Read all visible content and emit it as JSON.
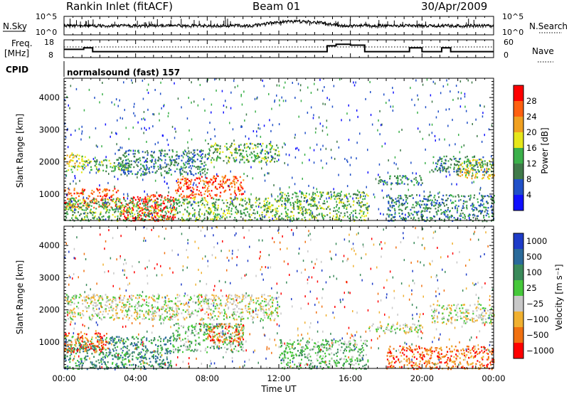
{
  "header": {
    "station": "Rankin Inlet (fitACF)",
    "beam": "Beam 01",
    "date": "30/Apr/2009"
  },
  "nsky_panel": {
    "left_label": "N.Sky",
    "right_label": "N.Search",
    "left_ticks": [
      "10^5",
      "10^0"
    ],
    "right_ticks": [
      "10^5",
      "10^0"
    ]
  },
  "freq_panel": {
    "left_label_top": "Freq.",
    "left_label_bottom": "[MHz]",
    "right_label": "Nave",
    "left_ticks": [
      "18",
      "8"
    ],
    "right_ticks": [
      "60",
      "0"
    ],
    "freq_steps": [
      {
        "t": 0.0,
        "nave": 28
      },
      {
        "t": 1.1,
        "nave": 33
      },
      {
        "t": 1.6,
        "nave": 20
      },
      {
        "t": 14.7,
        "nave": 40
      },
      {
        "t": 15.2,
        "nave": 45
      },
      {
        "t": 16.0,
        "nave": 42
      },
      {
        "t": 16.8,
        "nave": 20
      },
      {
        "t": 19.3,
        "nave": 33
      },
      {
        "t": 20.0,
        "nave": 20
      },
      {
        "t": 21.1,
        "nave": 33
      },
      {
        "t": 21.6,
        "nave": 20
      },
      {
        "t": 24.0,
        "nave": 20
      }
    ]
  },
  "cpid": {
    "label": "CPID",
    "value": "normalsound (fast) 157"
  },
  "power_panel": {
    "ylabel": "Slant Range [km]",
    "yticks": [
      "1000",
      "2000",
      "3000",
      "4000"
    ],
    "colorbar_label": "Power [dB]",
    "colorbar_ticks": [
      "4",
      "8",
      "12",
      "16",
      "20",
      "24",
      "28"
    ],
    "colors": [
      "#1010ff",
      "#2050c8",
      "#407a4a",
      "#3bb04a",
      "#e6e61a",
      "#f0a020",
      "#ff6010",
      "#ff0000"
    ]
  },
  "velocity_panel": {
    "ylabel": "Slant Range [km]",
    "yticks": [
      "1000",
      "2000",
      "3000",
      "4000"
    ],
    "colorbar_label": "Velocity [m s⁻¹]",
    "colorbar_ticks": [
      "1000",
      "500",
      "100",
      "25",
      "−25",
      "−100",
      "−500",
      "−1000"
    ],
    "colors": [
      "#1e3cc8",
      "#2a6a9a",
      "#3a8a5a",
      "#46c83a",
      "#c8c8c8",
      "#f0b030",
      "#f07010",
      "#ff0000"
    ]
  },
  "time_axis": {
    "xlabel": "Time UT",
    "ticks": [
      "00:00",
      "04:00",
      "08:00",
      "12:00",
      "16:00",
      "20:00",
      "00:00"
    ]
  },
  "chart_data": {
    "type": "heatmap",
    "title": "Rankin Inlet (fitACF)",
    "xlabel": "Time UT",
    "ylabel": "Slant Range [km]",
    "xlim_hours": [
      0,
      24
    ],
    "ylim": [
      180,
      4600
    ],
    "power_regions": [
      {
        "t0": 0.0,
        "t1": 1.2,
        "r0": 1700,
        "r1": 2300,
        "level": 4
      },
      {
        "t0": 1.2,
        "t1": 3.5,
        "r0": 1700,
        "r1": 2100,
        "level": 3
      },
      {
        "t0": 3.0,
        "t1": 8.0,
        "r0": 1600,
        "r1": 2400,
        "level": 2
      },
      {
        "t0": 8.0,
        "t1": 12.0,
        "r0": 2000,
        "r1": 2600,
        "level": 3
      },
      {
        "t0": 0.0,
        "t1": 3.0,
        "r0": 600,
        "r1": 1200,
        "level": 6
      },
      {
        "t0": 3.0,
        "t1": 6.2,
        "r0": 180,
        "r1": 1000,
        "level": 7
      },
      {
        "t0": 6.2,
        "t1": 10.0,
        "r0": 900,
        "r1": 1600,
        "level": 6
      },
      {
        "t0": 0.0,
        "t1": 12.0,
        "r0": 180,
        "r1": 900,
        "level": 3
      },
      {
        "t0": 12.0,
        "t1": 17.0,
        "r0": 180,
        "r1": 1100,
        "level": 3
      },
      {
        "t0": 17.5,
        "t1": 20.0,
        "r0": 1300,
        "r1": 1600,
        "level": 2
      },
      {
        "t0": 20.5,
        "t1": 24.0,
        "r0": 1700,
        "r1": 2200,
        "level": 2
      },
      {
        "t0": 22.0,
        "t1": 24.0,
        "r0": 1500,
        "r1": 2100,
        "level": 4
      },
      {
        "t0": 18.0,
        "t1": 24.0,
        "r0": 180,
        "r1": 1000,
        "level": 2
      }
    ],
    "velocity_regions": [
      {
        "t0": 0.0,
        "t1": 6.0,
        "r0": 180,
        "r1": 1200,
        "level": 2
      },
      {
        "t0": 0.0,
        "t1": 2.5,
        "r0": 700,
        "r1": 1300,
        "level": 6
      },
      {
        "t0": 6.0,
        "t1": 10.0,
        "r0": 700,
        "r1": 1600,
        "level": 3
      },
      {
        "t0": 8.0,
        "t1": 10.0,
        "r0": 1000,
        "r1": 1600,
        "level": 6
      },
      {
        "t0": 0.0,
        "t1": 12.0,
        "r0": 1700,
        "r1": 2500,
        "level": 4
      },
      {
        "t0": 12.0,
        "t1": 17.0,
        "r0": 180,
        "r1": 1100,
        "level": 3
      },
      {
        "t0": 17.0,
        "t1": 20.0,
        "r0": 1300,
        "r1": 1600,
        "level": 4
      },
      {
        "t0": 20.5,
        "t1": 24.0,
        "r0": 1600,
        "r1": 2200,
        "level": 4
      },
      {
        "t0": 18.0,
        "t1": 24.0,
        "r0": 180,
        "r1": 900,
        "level": 6
      }
    ]
  }
}
